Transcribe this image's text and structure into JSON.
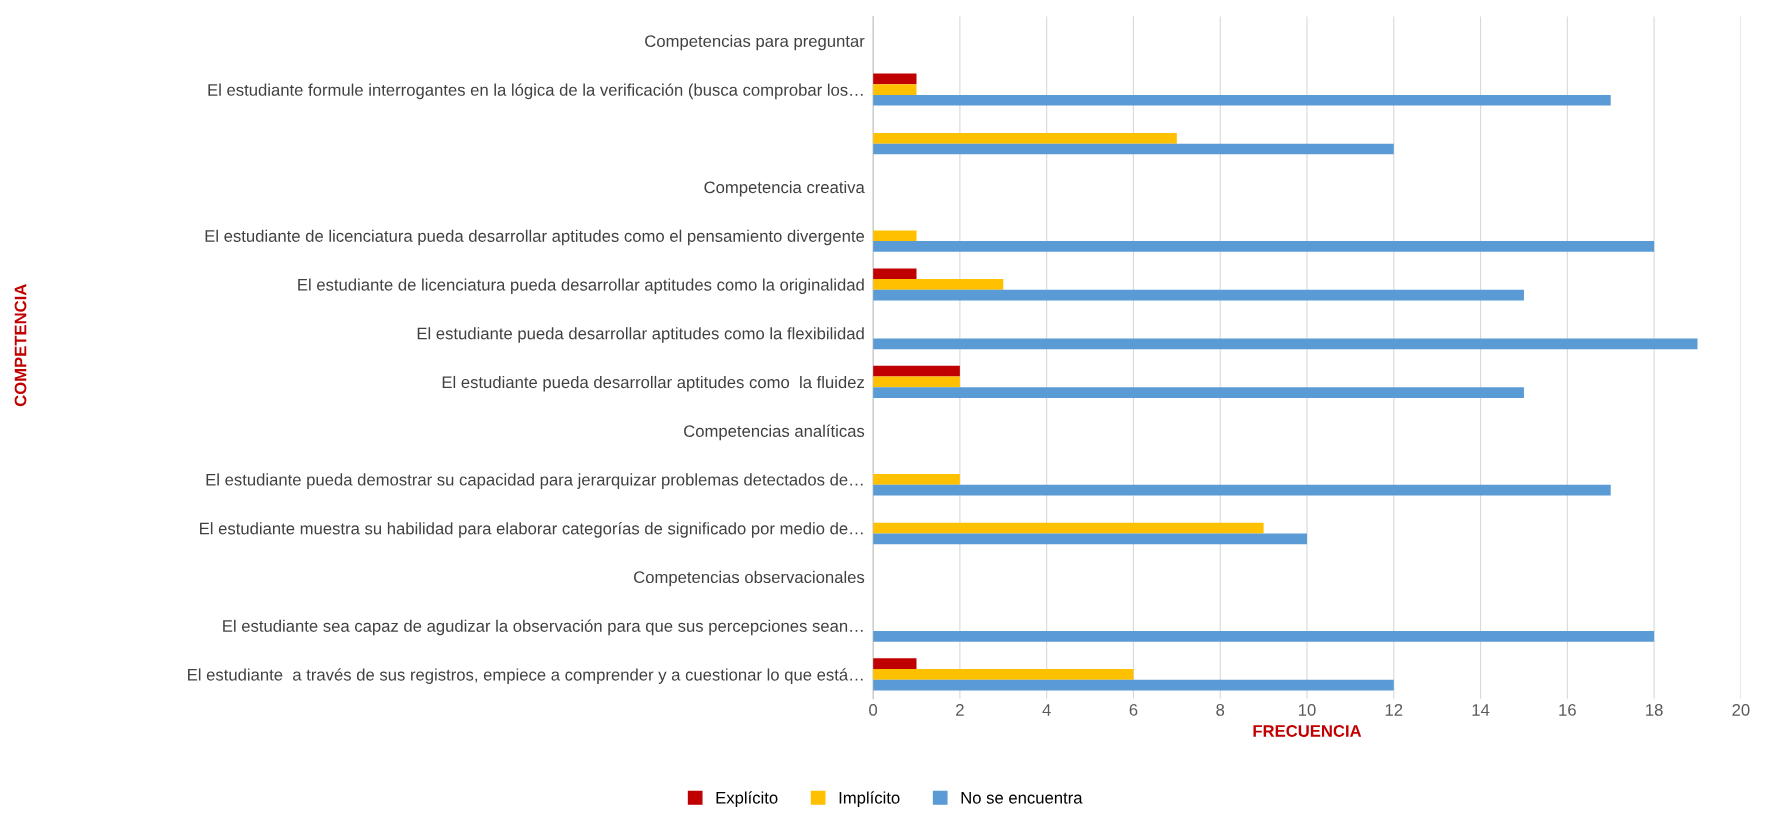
{
  "chart_data": {
    "type": "bar",
    "orientation": "horizontal",
    "xlabel": "FRECUENCIA",
    "annotations": [
      "COMPETENCIA"
    ],
    "categories": [
      "Competencias para preguntar",
      "El estudiante formule interrogantes en la lógica de la verificación (busca comprobar los…",
      null,
      "Competencia creativa",
      "El estudiante de licenciatura pueda desarrollar aptitudes como el pensamiento divergente",
      "El estudiante de licenciatura pueda desarrollar aptitudes como la originalidad",
      "El estudiante pueda desarrollar aptitudes como la flexibilidad",
      "El estudiante pueda desarrollar aptitudes como  la fluidez",
      "Competencias analíticas",
      "El estudiante pueda demostrar su capacidad para jerarquizar problemas detectados de…",
      "El estudiante muestra su habilidad para elaborar categorías de significado por medio de…",
      "Competencias observacionales",
      "El estudiante sea capaz de agudizar la observación para que sus percepciones sean…",
      "El estudiante  a través de sus registros, empiece a comprender y a cuestionar lo que está…"
    ],
    "series": [
      {
        "name": "Explícito",
        "color": "#c00000",
        "values": [
          null,
          1,
          null,
          null,
          null,
          1,
          null,
          2,
          null,
          null,
          null,
          null,
          null,
          1
        ]
      },
      {
        "name": "Implícito",
        "color": "#ffc000",
        "values": [
          null,
          1,
          7,
          null,
          1,
          3,
          null,
          2,
          null,
          2,
          9,
          null,
          null,
          6
        ]
      },
      {
        "name": "No se encuentra",
        "color": "#5b9bd5",
        "values": [
          null,
          17,
          12,
          null,
          18,
          15,
          19,
          15,
          null,
          17,
          10,
          null,
          18,
          12
        ]
      }
    ],
    "xlim": [
      0,
      20
    ],
    "xticks": [
      0,
      2,
      4,
      6,
      8,
      10,
      12,
      14,
      16,
      18,
      20
    ],
    "grid": "x",
    "legend": "bottom"
  }
}
